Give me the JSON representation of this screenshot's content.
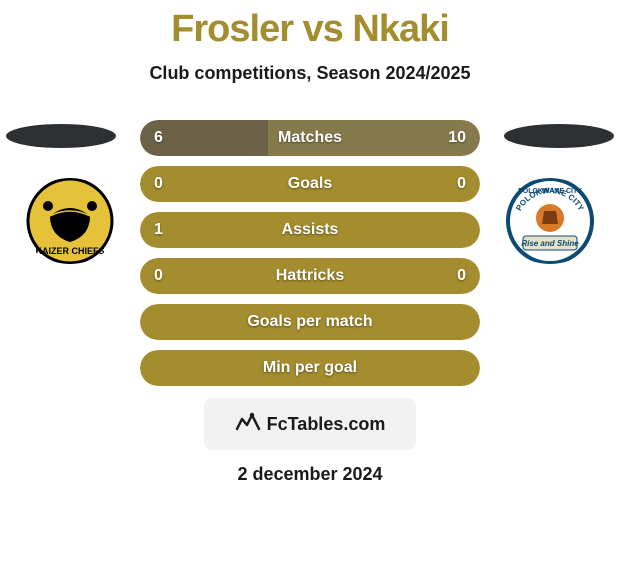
{
  "colors": {
    "background": "#ffffff",
    "title": "#a38d2e",
    "subtitle": "#1a1a1a",
    "avatar_ellipse": "#2d3033",
    "bar_left": "#6b6248",
    "bar_right": "#867a4d",
    "bar_single": "#a38d2e",
    "bar_text": "#ffffff",
    "badge_bg": "#f2f2f2",
    "badge_text": "#1a1a1a",
    "date_text": "#1a1a1a",
    "logo_left_bg": "#e6c23a",
    "logo_left_text": "#000000",
    "logo_right_bg": "#ffffff",
    "logo_right_border": "#0b4a73",
    "logo_right_text": "#0b4a73"
  },
  "title": {
    "player1": "Frosler",
    "vs": "vs",
    "player2": "Nkaki"
  },
  "subtitle": "Club competitions, Season 2024/2025",
  "clubs": {
    "left": {
      "name": "KAIZER CHIEFS"
    },
    "right": {
      "name": "POLOKWANE CITY F.C",
      "motto": "Rise and Shine"
    }
  },
  "bars": [
    {
      "label": "Matches",
      "left_val": "6",
      "right_val": "10",
      "left_pct": 37.5,
      "right_pct": 62.5,
      "mode": "split"
    },
    {
      "label": "Goals",
      "left_val": "0",
      "right_val": "0",
      "mode": "single"
    },
    {
      "label": "Assists",
      "left_val": "1",
      "right_val": "",
      "mode": "single"
    },
    {
      "label": "Hattricks",
      "left_val": "0",
      "right_val": "0",
      "mode": "single"
    },
    {
      "label": "Goals per match",
      "left_val": "",
      "right_val": "",
      "mode": "single"
    },
    {
      "label": "Min per goal",
      "left_val": "",
      "right_val": "",
      "mode": "single"
    }
  ],
  "brand": {
    "text": "FcTables.com"
  },
  "date": "2 december 2024",
  "bar_metrics": {
    "height": 36,
    "gap": 10,
    "radius": 18,
    "fontsize": 16
  }
}
